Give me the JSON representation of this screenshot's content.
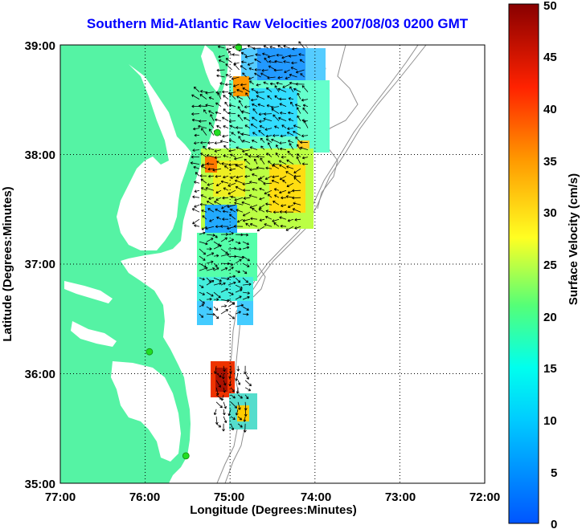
{
  "title": "Southern Mid-Atlantic Raw Velocities 2007/08/03 0200 GMT",
  "xlabel": "Longitude (Degrees:Minutes)",
  "ylabel": "Latitude (Degrees:Minutes)",
  "colorbar_label": "Surface Velocity (cm/s)",
  "x_ticks": [
    "77:00",
    "76:00",
    "75:00",
    "74:00",
    "73:00",
    "72:00"
  ],
  "y_ticks": [
    "39:00",
    "38:00",
    "37:00",
    "36:00",
    "35:00"
  ],
  "colorbar_ticks": [
    "50",
    "45",
    "40",
    "35",
    "30",
    "25",
    "20",
    "15",
    "10",
    "5",
    "0"
  ],
  "colors": {
    "land": "#55f3a4",
    "title": "#0000ff",
    "station": "#22dd22",
    "contour": "#909090"
  },
  "chart_data": {
    "type": "heatmap",
    "title": "Southern Mid-Atlantic Raw Velocities 2007/08/03 0200 GMT",
    "xlabel": "Longitude (Degrees:Minutes)",
    "ylabel": "Latitude (Degrees:Minutes)",
    "xlim": [
      -77,
      -72
    ],
    "ylim": [
      35,
      39
    ],
    "clim": [
      0,
      50
    ],
    "colorbar_label": "Surface Velocity (cm/s)",
    "grid": true,
    "stations": [
      {
        "lon": -74.9,
        "lat": 38.98
      },
      {
        "lon": -75.15,
        "lat": 38.2
      },
      {
        "lon": -75.95,
        "lat": 36.2
      },
      {
        "lon": -75.52,
        "lat": 35.25
      }
    ],
    "velocity_regions": [
      {
        "lon_min": -75.1,
        "lon_max": -74.1,
        "lat_min": 38.6,
        "lat_max": 39.0,
        "mean_cm_s": 10
      },
      {
        "lon_min": -75.4,
        "lon_max": -74.0,
        "lat_min": 37.9,
        "lat_max": 38.6,
        "mean_cm_s": 18
      },
      {
        "lon_min": -75.4,
        "lon_max": -74.1,
        "lat_min": 37.3,
        "lat_max": 37.9,
        "mean_cm_s": 24
      },
      {
        "lon_min": -75.4,
        "lon_max": -74.8,
        "lat_min": 36.5,
        "lat_max": 37.3,
        "mean_cm_s": 15
      },
      {
        "lon_min": -75.2,
        "lon_max": -74.8,
        "lat_min": 35.5,
        "lat_max": 36.1,
        "mean_cm_s": 30
      }
    ]
  }
}
